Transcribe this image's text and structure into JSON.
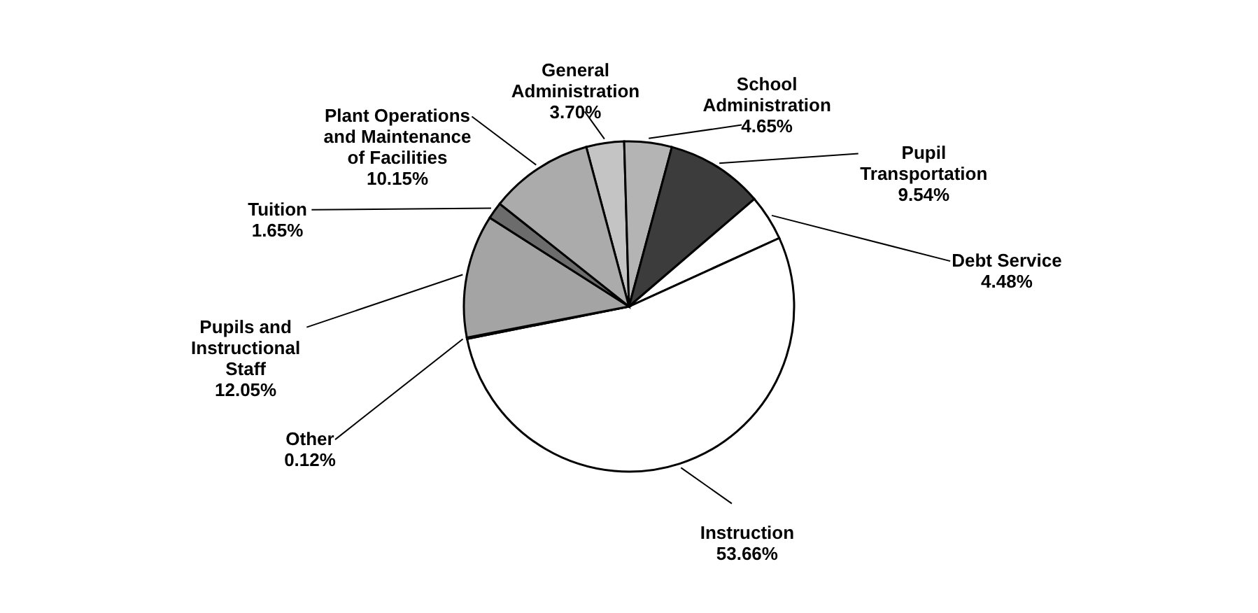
{
  "chart_data": {
    "type": "pie",
    "categories": [
      "General Administration",
      "School Administration",
      "Pupil Transportation",
      "Debt Service",
      "Instruction",
      "Other",
      "Pupils and Instructional Staff",
      "Tuition",
      "Plant Operations and Maintenance of Facilities"
    ],
    "values": [
      3.7,
      4.65,
      9.54,
      4.48,
      53.66,
      0.12,
      12.05,
      1.65,
      10.15
    ],
    "colors": [
      "#c4c4c4",
      "#b4b4b4",
      "#3c3c3c",
      "#ffffff",
      "#ffffff",
      "#ffffff",
      "#a4a4a4",
      "#6c6c6c",
      "#ababab"
    ],
    "data_labels": true,
    "value_labels": [
      "3.70%",
      "4.65%",
      "9.54%",
      "4.48%",
      "53.66%",
      "0.12%",
      "12.05%",
      "1.65%",
      "10.15%"
    ]
  }
}
